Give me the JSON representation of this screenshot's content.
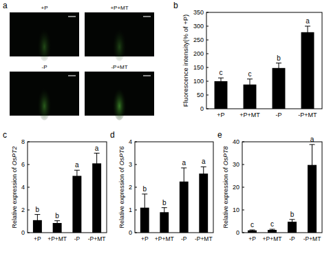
{
  "image_panel": {
    "panel_label": "a",
    "images": [
      "+P",
      "+P+MT",
      "-P",
      "-P+MT"
    ]
  },
  "chart_data": [
    {
      "type": "bar",
      "panel_label": "b",
      "ylabel": "Fluorescence intensity(% of +P)",
      "categories": [
        "+P",
        "+P+MT",
        "-P",
        "-P+MT"
      ],
      "values": [
        100,
        88,
        148,
        278
      ],
      "errors": [
        12,
        20,
        18,
        22
      ],
      "significance": [
        "c",
        "c",
        "b",
        "a"
      ],
      "color": "#000000",
      "ylim": [
        0,
        350
      ],
      "yticks": [
        0,
        50,
        100,
        150,
        200,
        250,
        300,
        350
      ],
      "grid": false
    },
    {
      "type": "bar",
      "panel_label": "c",
      "ylabel": "Relative expression of OsPT2",
      "categories": [
        "+P",
        "+P+MT",
        "-P",
        "-P+MT"
      ],
      "values": [
        1.1,
        0.85,
        5.0,
        6.1
      ],
      "errors": [
        0.5,
        0.2,
        0.5,
        0.9
      ],
      "significance": [
        "b",
        "b",
        "a",
        "a"
      ],
      "color": "#000000",
      "ylim": [
        0,
        8
      ],
      "yticks": [
        0,
        2,
        4,
        6,
        8
      ],
      "grid": false
    },
    {
      "type": "bar",
      "panel_label": "d",
      "ylabel": "Relative expression of OsPT6",
      "categories": [
        "+P",
        "+P+MT",
        "-P",
        "-P+MT"
      ],
      "values": [
        1.1,
        0.9,
        2.25,
        2.6
      ],
      "errors": [
        0.6,
        0.2,
        0.6,
        0.3
      ],
      "significance": [
        "b",
        "b",
        "a",
        "a"
      ],
      "color": "#000000",
      "ylim": [
        0,
        4
      ],
      "yticks": [
        0,
        1,
        2,
        3,
        4
      ],
      "grid": false
    },
    {
      "type": "bar",
      "panel_label": "e",
      "ylabel": "Relative expression of OsPT8",
      "categories": [
        "+P",
        "+P+MT",
        "-P",
        "-P+MT"
      ],
      "values": [
        1.0,
        1.2,
        4.8,
        29.8
      ],
      "errors": [
        0.2,
        0.3,
        1.0,
        9.0
      ],
      "significance": [
        "c",
        "c",
        "b",
        "a"
      ],
      "color": "#000000",
      "ylim": [
        0,
        40
      ],
      "yticks": [
        0,
        10,
        20,
        30,
        40
      ],
      "grid": false
    }
  ]
}
